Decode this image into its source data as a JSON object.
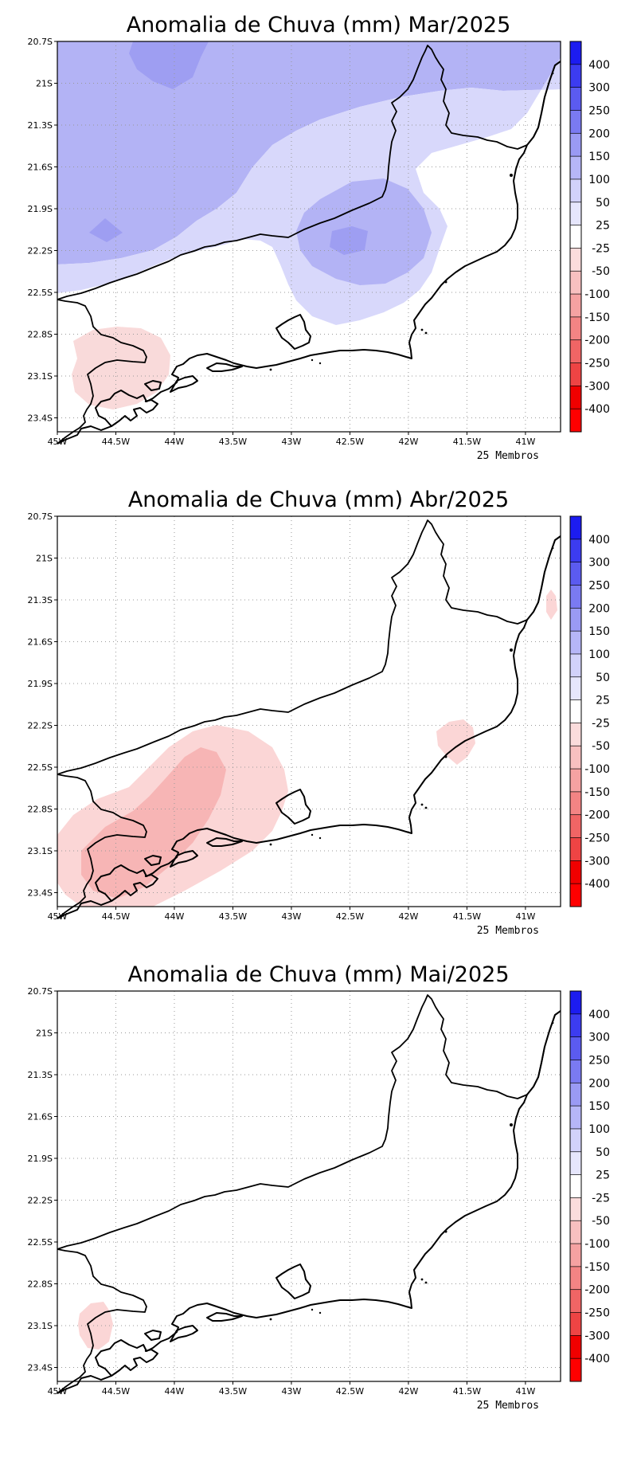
{
  "panels": [
    {
      "title": "Anomalia de Chuva (mm) Mar/2025",
      "members": "25 Membros",
      "anomalies": [
        {
          "level": "100 to 150",
          "color": "#b3b3f5",
          "area": "north-band"
        },
        {
          "level": "150 to 200",
          "color": "#9e9ef2",
          "area": "north-core"
        },
        {
          "level": "50 to 100",
          "color": "#d8d8fb",
          "area": "east-band"
        },
        {
          "level": "100 to 150",
          "color": "#b3b3f5",
          "area": "center-east-core"
        },
        {
          "level": "150 to 200",
          "color": "#9e9ef2",
          "area": "center-east-peak"
        },
        {
          "level": "150 to 200",
          "color": "#9e9ef2",
          "area": "west-small"
        },
        {
          "level": "-50 to -25",
          "color": "#f9dada",
          "area": "southwest"
        }
      ]
    },
    {
      "title": "Anomalia de Chuva (mm) Abr/2025",
      "members": "25 Membros",
      "anomalies": [
        {
          "level": "-50 to -25",
          "color": "#fbd6d6",
          "area": "southwest-band"
        },
        {
          "level": "-100 to -50",
          "color": "#f7b5b5",
          "area": "southwest-core"
        },
        {
          "level": "-50 to -25",
          "color": "#fbd6d6",
          "area": "east-small"
        },
        {
          "level": "-50 to -25",
          "color": "#fbd6d6",
          "area": "northeast-small"
        }
      ]
    },
    {
      "title": "Anomalia de Chuva (mm) Mai/2025",
      "members": "25 Membros",
      "anomalies": [
        {
          "level": "-50 to -25",
          "color": "#fbd6d6",
          "area": "southwest-small"
        }
      ]
    }
  ],
  "axes": {
    "lat_labels": [
      "20.7S",
      "21S",
      "21.3S",
      "21.6S",
      "21.9S",
      "22.2S",
      "22.5S",
      "22.8S",
      "23.1S",
      "23.4S"
    ],
    "lon_labels": [
      "45W",
      "44.5W",
      "44W",
      "43.5W",
      "43W",
      "42.5W",
      "42W",
      "41.5W",
      "41W"
    ]
  },
  "colorbar": {
    "labels": [
      "400",
      "300",
      "250",
      "200",
      "150",
      "100",
      "50",
      "25",
      "-25",
      "-50",
      "-100",
      "-150",
      "-200",
      "-250",
      "-300",
      "-400"
    ],
    "colors": [
      "#1c1cf0",
      "#3c3cf0",
      "#5b5bf0",
      "#7a7af2",
      "#9a9af4",
      "#b6b6f7",
      "#d2d2fa",
      "#e6e6fc",
      "#ffffff",
      "#fbdcdc",
      "#f8c0c0",
      "#f5a2a2",
      "#f38484",
      "#f06565",
      "#ee4444",
      "#f00000",
      "#ff0000"
    ]
  }
}
